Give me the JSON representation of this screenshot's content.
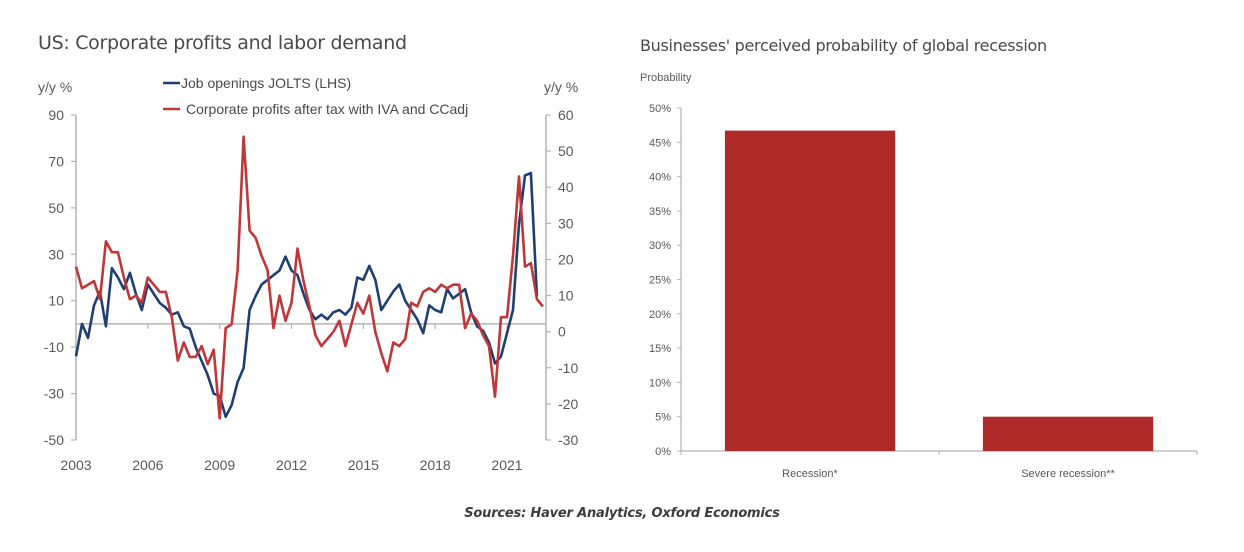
{
  "source_note": "Sources: Haver Analytics, Oxford Economics",
  "chart_data": [
    {
      "type": "line",
      "title": "US: Corporate profits and labor demand",
      "ylabel_left": "y/y %",
      "ylabel_right": "y/y %",
      "ylim_left": [
        -50,
        90
      ],
      "ylim_right": [
        -30,
        60
      ],
      "yticks_left": [
        90,
        70,
        50,
        30,
        10,
        -10,
        -30,
        -50
      ],
      "yticks_right": [
        60,
        50,
        40,
        30,
        20,
        10,
        0,
        -10,
        -20,
        -30
      ],
      "xticks": [
        "2003",
        "2006",
        "2009",
        "2012",
        "2015",
        "2018",
        "2021"
      ],
      "x_start": 2003.0,
      "x_step": 0.25,
      "legend_position": "top-center",
      "series": [
        {
          "name": "Job openings JOLTS (LHS)",
          "axis": "left",
          "color": "#1f3f73",
          "values": [
            -14,
            0,
            -6,
            8,
            14,
            -1,
            24,
            20,
            15,
            22,
            13,
            6,
            17,
            13,
            9,
            7,
            4,
            5,
            -1,
            -2,
            -10,
            -16,
            -22,
            -30,
            -31,
            -40,
            -35,
            -25,
            -19,
            6,
            12,
            17,
            19,
            21,
            23,
            29,
            23,
            21,
            13,
            6,
            2,
            4,
            2,
            5,
            6,
            4,
            7,
            20,
            19,
            25,
            19,
            6,
            10,
            14,
            17,
            10,
            6,
            2,
            -4,
            8,
            6,
            5,
            15,
            11,
            13,
            15,
            5,
            -1,
            -3,
            -8,
            -17,
            -14,
            -4,
            6,
            43,
            64,
            65,
            12
          ]
        },
        {
          "name": "Corporate profits after tax with IVA and CCadj",
          "axis": "right",
          "color": "#c0373a",
          "values": [
            18,
            12,
            13,
            14,
            9,
            25,
            22,
            22,
            15,
            9,
            10,
            8,
            15,
            13,
            11,
            11,
            4,
            -8,
            -3,
            -7,
            -7,
            -4,
            -9,
            -5,
            -24,
            1,
            2,
            17,
            54,
            28,
            26,
            21,
            17,
            1,
            10,
            3,
            8,
            23,
            14,
            7,
            -1,
            -4,
            -2,
            0,
            3,
            -4,
            2,
            8,
            5,
            10,
            0,
            -6,
            -11,
            -3,
            -4,
            -2,
            8,
            7,
            11,
            12,
            11,
            13,
            12,
            13,
            13,
            1,
            5,
            3,
            -1,
            -4,
            -18,
            4,
            4,
            21,
            43,
            18,
            19,
            9,
            7
          ]
        }
      ]
    },
    {
      "type": "bar",
      "title": "Businesses' perceived probability of global recession",
      "ylabel": "Probability",
      "xlabel": "",
      "ylim": [
        0,
        50
      ],
      "yticks": [
        "50%",
        "45%",
        "40%",
        "35%",
        "30%",
        "25%",
        "20%",
        "15%",
        "10%",
        "5%",
        "0%"
      ],
      "categories": [
        "Recession*",
        "Severe recession**"
      ],
      "values": [
        46.7,
        5.0
      ],
      "color": "#ad2a28"
    }
  ]
}
